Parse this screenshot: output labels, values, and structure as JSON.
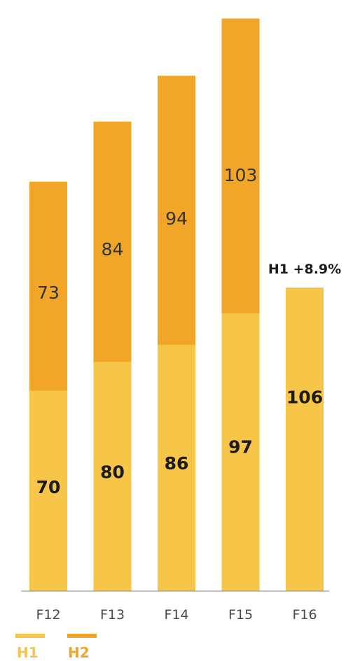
{
  "colors": {
    "h1": "#F7C548",
    "h2": "#F2A628",
    "baseline": "#8a8a8a"
  },
  "chart_data": {
    "type": "bar",
    "stacked": true,
    "categories": [
      "F12",
      "F13",
      "F14",
      "F15",
      "F16"
    ],
    "series": [
      {
        "name": "H1",
        "values": [
          70,
          80,
          86,
          97,
          106
        ]
      },
      {
        "name": "H2",
        "values": [
          73,
          84,
          94,
          103,
          null
        ]
      }
    ],
    "ylim": [
      0,
      205
    ],
    "grid": false,
    "legend": "bottom-left",
    "annotations": [
      {
        "category": "F16",
        "text": "H1 +8.9%"
      }
    ]
  }
}
